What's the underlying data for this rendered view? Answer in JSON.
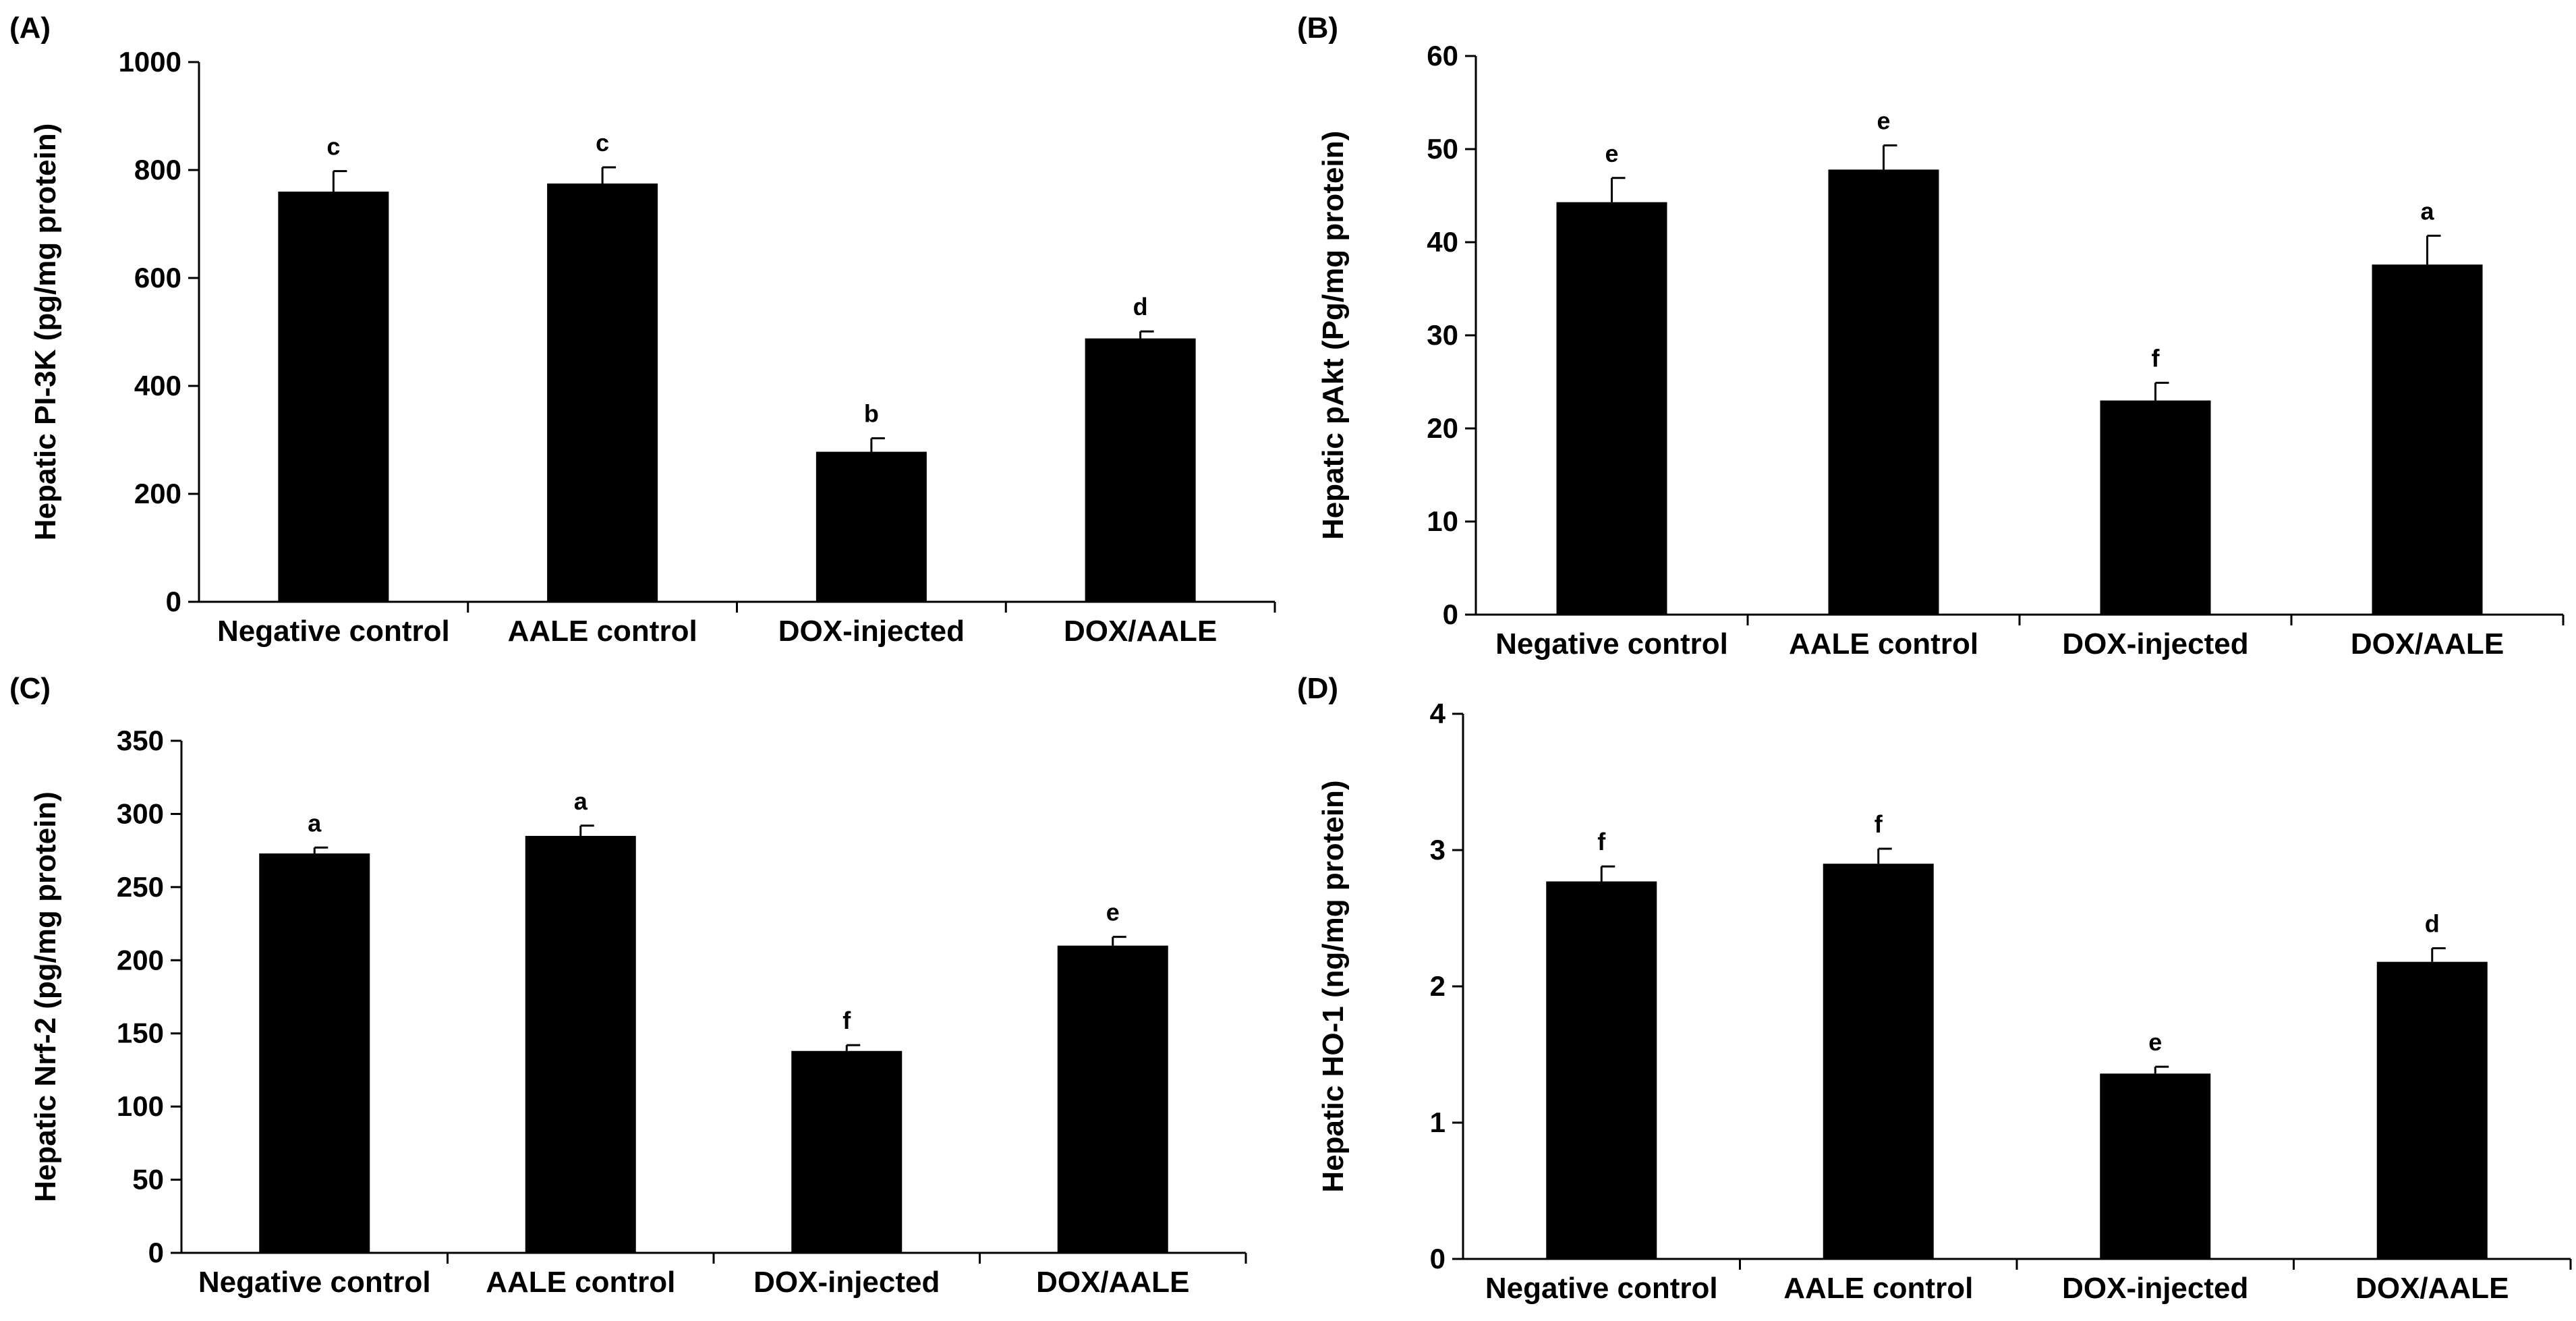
{
  "colors": {
    "bar": "#000000",
    "axis": "#000000",
    "background": "#ffffff"
  },
  "chart_data": [
    {
      "type": "bar",
      "panel_label": "(A)",
      "title": "",
      "xlabel": "",
      "ylabel": "Hepatic  PI-3K (pg/mg protein)",
      "ylim": [
        0,
        1000
      ],
      "yticks": [
        0,
        200,
        400,
        600,
        800,
        1000
      ],
      "categories": [
        "Negative control",
        "AALE control",
        "DOX-injected",
        "DOX/AALE"
      ],
      "values": [
        760,
        775,
        278,
        488
      ],
      "errors": [
        38,
        30,
        25,
        13
      ],
      "letters": [
        "c",
        "c",
        "b",
        "d"
      ]
    },
    {
      "type": "bar",
      "panel_label": "(B)",
      "title": "",
      "xlabel": "",
      "ylabel": "Hepatic  pAkt (Pg/mg protein)",
      "ylim": [
        0,
        60
      ],
      "yticks": [
        0,
        10,
        20,
        30,
        40,
        50,
        60
      ],
      "categories": [
        "Negative control",
        "AALE control",
        "DOX-injected",
        "DOX/AALE"
      ],
      "values": [
        44.3,
        47.8,
        23.0,
        37.6
      ],
      "errors": [
        2.6,
        2.6,
        1.9,
        3.1
      ],
      "letters": [
        "e",
        "e",
        "f",
        "a"
      ]
    },
    {
      "type": "bar",
      "panel_label": "(C)",
      "title": "",
      "xlabel": "",
      "ylabel": "Hepatic  Nrf-2 (pg/mg protein)",
      "ylim": [
        0,
        350
      ],
      "yticks": [
        0,
        50,
        100,
        150,
        200,
        250,
        300,
        350
      ],
      "categories": [
        "Negative control",
        "AALE control",
        "DOX-injected",
        "DOX/AALE"
      ],
      "values": [
        273,
        285,
        138,
        210
      ],
      "errors": [
        4,
        7,
        4,
        6
      ],
      "letters": [
        "a",
        "a",
        "f",
        "e"
      ]
    },
    {
      "type": "bar",
      "panel_label": "(D)",
      "title": "",
      "xlabel": "",
      "ylabel": "Hepatic HO-1 (ng/mg protein)",
      "ylim": [
        0,
        4
      ],
      "yticks": [
        0,
        1,
        2,
        3,
        4
      ],
      "categories": [
        "Negative control",
        "AALE control",
        "DOX-injected",
        "DOX/AALE"
      ],
      "values": [
        2.77,
        2.9,
        1.36,
        2.18
      ],
      "errors": [
        0.11,
        0.11,
        0.05,
        0.1
      ],
      "letters": [
        "f",
        "f",
        "e",
        "d"
      ]
    }
  ]
}
